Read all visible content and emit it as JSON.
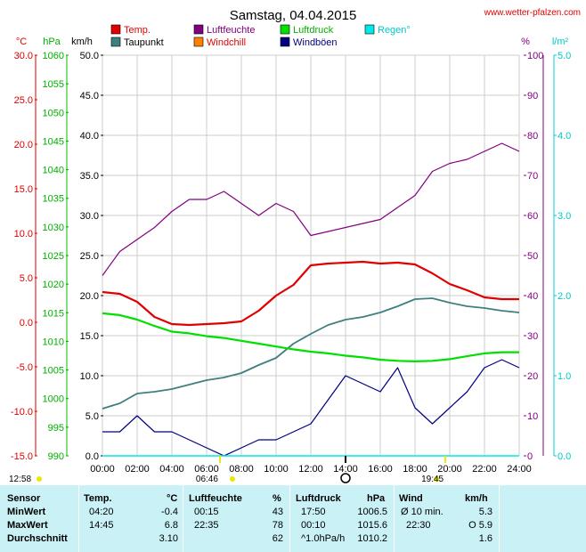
{
  "title": "Samstag, 04.04.2015",
  "website": "www.wetter-pfalzen.com",
  "axis_units": {
    "temp": "°C",
    "pressure": "hPa",
    "speed": "km/h",
    "humidity": "%",
    "rain": "l/m²"
  },
  "legend": [
    {
      "label": "Temp.",
      "color": "#e00000"
    },
    {
      "label": "Taupunkt",
      "color": "#3f7f7f"
    },
    {
      "label": "Luftfeuchte",
      "color": "#800080"
    },
    {
      "label": "Windchill",
      "color": "#ff8000"
    },
    {
      "label": "Luftdruck",
      "color": "#00e000"
    },
    {
      "label": "Windböen",
      "color": "#000080"
    },
    {
      "label": "Regen°",
      "color": "#00e8e8"
    }
  ],
  "time_markers": {
    "sunrise": "06:46",
    "sunset": "19:45",
    "left_time": "12:58"
  },
  "chart_data": {
    "type": "line",
    "x": [
      "00:00",
      "01:00",
      "02:00",
      "03:00",
      "04:00",
      "05:00",
      "06:00",
      "07:00",
      "08:00",
      "09:00",
      "10:00",
      "11:00",
      "12:00",
      "13:00",
      "14:00",
      "15:00",
      "16:00",
      "17:00",
      "18:00",
      "19:00",
      "20:00",
      "21:00",
      "22:00",
      "23:00",
      "24:00"
    ],
    "x_ticks": [
      "00:00",
      "02:00",
      "04:00",
      "06:00",
      "08:00",
      "10:00",
      "12:00",
      "14:00",
      "16:00",
      "18:00",
      "20:00",
      "22:00",
      "24:00"
    ],
    "axes": {
      "temp": {
        "range": [
          -15,
          30
        ],
        "ticks": [
          "30.0",
          "25.0",
          "20.0",
          "15.0",
          "10.0",
          "5.0",
          "0.0",
          "-5.0",
          "-10.0",
          "-15.0"
        ],
        "color": "#e00000"
      },
      "pressure": {
        "range": [
          990,
          1060
        ],
        "ticks": [
          "1060",
          "1055",
          "1050",
          "1045",
          "1040",
          "1035",
          "1030",
          "1025",
          "1020",
          "1015",
          "1010",
          "1005",
          "1000",
          "995",
          "990"
        ],
        "color": "#00c000"
      },
      "speed": {
        "range": [
          0,
          50
        ],
        "ticks": [
          "50.0",
          "45.0",
          "40.0",
          "35.0",
          "30.0",
          "25.0",
          "20.0",
          "15.0",
          "10.0",
          "5.0",
          "0.0"
        ],
        "color": "#000000"
      },
      "humidity": {
        "range": [
          0,
          100
        ],
        "ticks": [
          "100",
          "90",
          "80",
          "70",
          "60",
          "50",
          "40",
          "30",
          "20",
          "10",
          "0"
        ],
        "color": "#800080"
      },
      "rain": {
        "range": [
          0,
          5
        ],
        "ticks": [
          "5.0",
          "4.0",
          "3.0",
          "2.0",
          "1.0",
          "0.0"
        ],
        "color": "#00d0d0"
      }
    },
    "series": [
      {
        "name": "Temp.",
        "axis": "temp",
        "color": "#e00000",
        "values": [
          3.4,
          3.2,
          2.3,
          0.6,
          -0.2,
          -0.3,
          -0.2,
          -0.1,
          0.1,
          1.3,
          3.0,
          4.2,
          6.4,
          6.6,
          6.7,
          6.8,
          6.6,
          6.7,
          6.5,
          5.5,
          4.3,
          3.6,
          2.8,
          2.6,
          2.6
        ]
      },
      {
        "name": "Taupunkt",
        "axis": "temp",
        "color": "#3f7f7f",
        "values": [
          -9.7,
          -9.1,
          -8.0,
          -7.8,
          -7.5,
          -7.0,
          -6.5,
          -6.2,
          -5.7,
          -4.8,
          -4.0,
          -2.4,
          -1.3,
          -0.3,
          0.3,
          0.6,
          1.1,
          1.8,
          2.6,
          2.7,
          2.2,
          1.8,
          1.6,
          1.3,
          1.1
        ]
      },
      {
        "name": "Luftfeuchte",
        "axis": "humidity",
        "color": "#800080",
        "values": [
          45,
          51,
          54,
          57,
          61,
          64,
          64,
          66,
          63,
          60,
          63,
          61,
          55,
          56,
          57,
          58,
          59,
          62,
          65,
          71,
          73,
          74,
          76,
          78,
          76
        ]
      },
      {
        "name": "Luftdruck",
        "axis": "pressure",
        "color": "#00e000",
        "values": [
          1014.9,
          1014.6,
          1013.8,
          1012.7,
          1011.7,
          1011.4,
          1010.9,
          1010.6,
          1010.1,
          1009.6,
          1009.1,
          1008.6,
          1008.2,
          1007.9,
          1007.5,
          1007.2,
          1006.8,
          1006.6,
          1006.5,
          1006.6,
          1006.9,
          1007.4,
          1007.9,
          1008.1,
          1008.1
        ]
      },
      {
        "name": "Windböen",
        "axis": "speed",
        "color": "#000080",
        "values": [
          3,
          3,
          5,
          3,
          3,
          2,
          1,
          0,
          1,
          2,
          2,
          3,
          4,
          7,
          10,
          9,
          8,
          11,
          6,
          4,
          6,
          8,
          11,
          12,
          11
        ]
      },
      {
        "name": "Regen°",
        "axis": "rain",
        "color": "#00e8e8",
        "values": [
          0,
          0,
          0,
          0,
          0,
          0,
          0,
          0,
          0,
          0,
          0,
          0,
          0,
          0,
          0,
          0,
          0,
          0,
          0,
          0,
          0,
          0,
          0,
          0,
          0
        ]
      }
    ]
  },
  "table": {
    "headers": {
      "sensor": "Sensor",
      "temp": "Temp.",
      "temp_unit": "°C",
      "hum": "Luftfeuchte",
      "hum_unit": "%",
      "pres": "Luftdruck",
      "pres_unit": "hPa",
      "wind": "Wind",
      "wind_unit": "km/h"
    },
    "rows": [
      {
        "label": "MinWert",
        "temp_time": "04:20",
        "temp_val": "-0.4",
        "hum_time": "00:15",
        "hum_val": "43",
        "pres_time": "17:50",
        "pres_val": "1006.5",
        "wind_desc": "Ø 10 min.",
        "wind_val": "5.3"
      },
      {
        "label": "MaxWert",
        "temp_time": "14:45",
        "temp_val": "6.8",
        "hum_time": "22:35",
        "hum_val": "78",
        "pres_time": "00:10",
        "pres_val": "1015.6",
        "wind_desc": "22:30",
        "wind_val": "O 5.9"
      },
      {
        "label": "Durchschnitt",
        "temp_time": "",
        "temp_val": "3.10",
        "hum_time": "",
        "hum_val": "62",
        "pres_time": "^1.0hPa/h",
        "pres_val": "1010.2",
        "wind_desc": "",
        "wind_val": "1.6"
      }
    ]
  }
}
